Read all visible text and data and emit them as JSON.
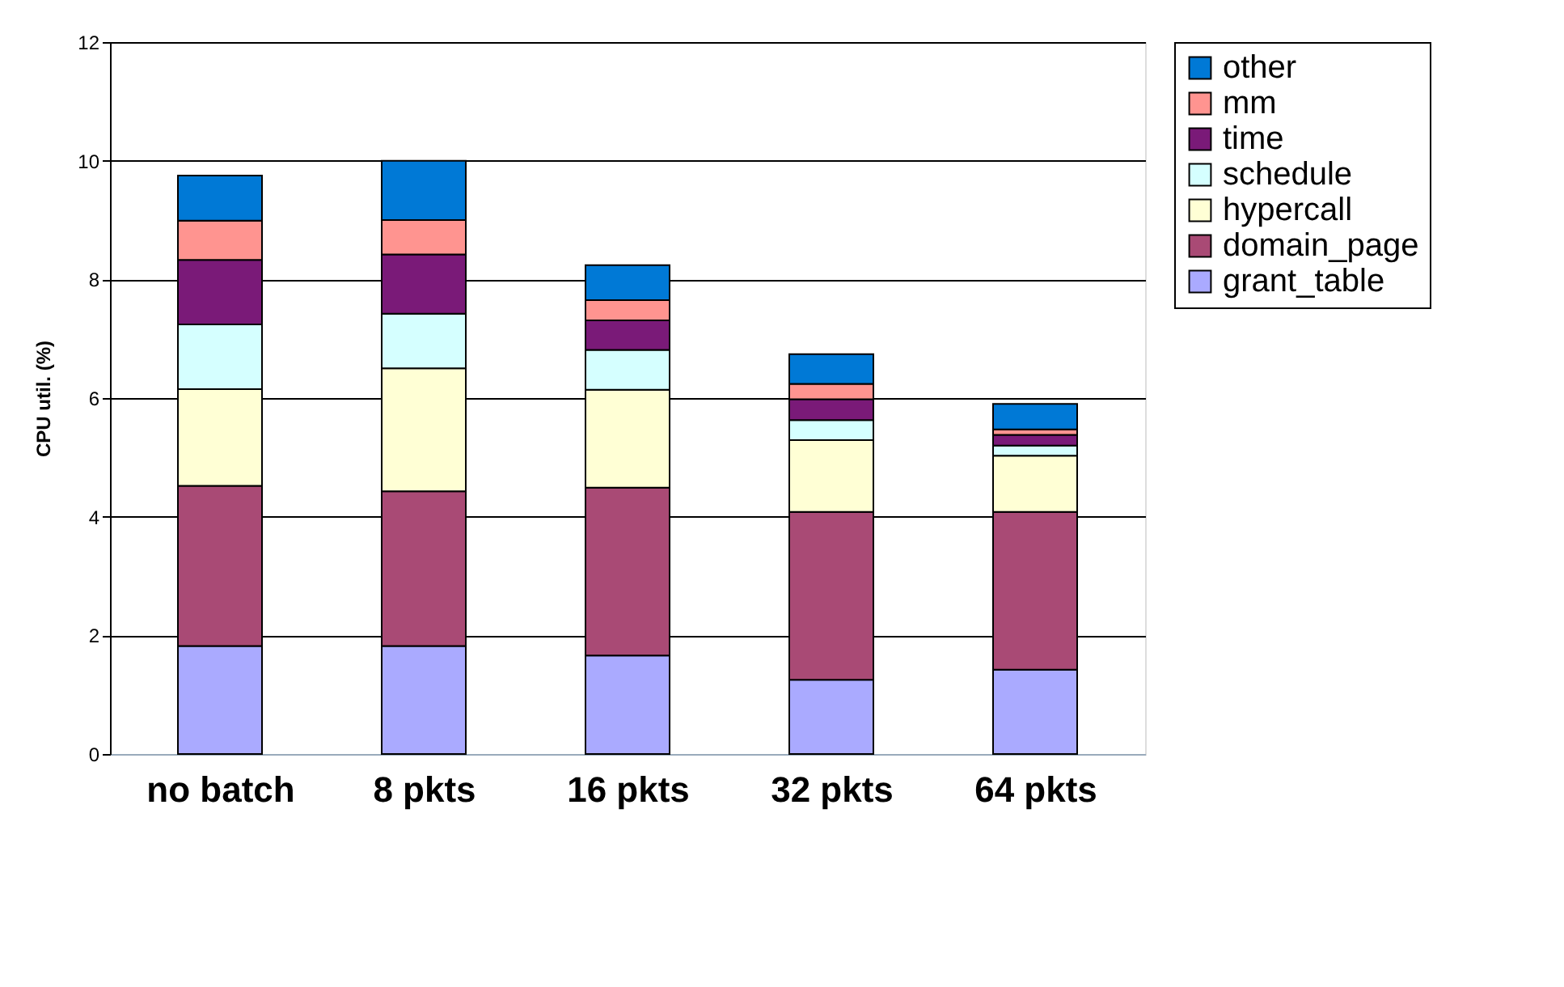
{
  "chart_data": {
    "type": "bar",
    "stacked": true,
    "ylabel": "CPU util. (%)",
    "categories": [
      "no batch",
      "8 pkts",
      "16 pkts",
      "32 pkts",
      "64 pkts"
    ],
    "series": [
      {
        "name": "grant_table",
        "color": "#aaaaff",
        "values": [
          1.82,
          1.82,
          1.66,
          1.25,
          1.42
        ]
      },
      {
        "name": "domain_page",
        "color": "#a94a75",
        "values": [
          2.7,
          2.61,
          2.83,
          2.83,
          2.66
        ]
      },
      {
        "name": "hypercall",
        "color": "#ffffd5",
        "values": [
          1.63,
          2.07,
          1.65,
          1.21,
          0.95
        ]
      },
      {
        "name": "schedule",
        "color": "#d5ffff",
        "values": [
          1.09,
          0.92,
          0.67,
          0.34,
          0.17
        ]
      },
      {
        "name": "time",
        "color": "#7a1a78",
        "values": [
          1.09,
          1.0,
          0.5,
          0.35,
          0.18
        ]
      },
      {
        "name": "mm",
        "color": "#ff9490",
        "values": [
          0.66,
          0.58,
          0.34,
          0.26,
          0.09
        ]
      },
      {
        "name": "other",
        "color": "#0079d6",
        "values": [
          0.76,
          1.0,
          0.59,
          0.5,
          0.43
        ]
      }
    ],
    "ylim": [
      0,
      12
    ],
    "yticks": [
      0,
      2,
      4,
      6,
      8,
      10,
      12
    ],
    "grid": "y",
    "legend": "right"
  }
}
